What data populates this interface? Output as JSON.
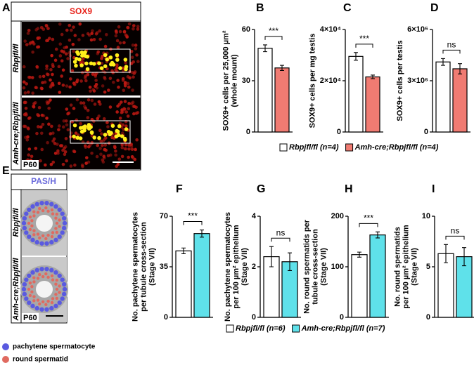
{
  "image_panels": [
    {
      "letter": "A",
      "header": "SOX9",
      "row_labels": [
        "Rbpjfl/fl",
        "Amh-cre;Rbpjfl/fl"
      ],
      "age": "P60"
    },
    {
      "letter": "E",
      "header": "PAS/H",
      "row_labels": [
        "Rbpjfl/fl",
        "Amh-cre;Rbpjfl/fl"
      ],
      "age": "P60",
      "key": [
        "pachytene spermatocyte",
        "round spermatid"
      ]
    }
  ],
  "legends": [
    [
      {
        "name": "Rbpjfl/fl (n=4)",
        "color": "#ffffff"
      },
      {
        "name": "Amh-cre;Rbpjfl/fl (n=4)",
        "color": "#f07b72"
      }
    ],
    [
      {
        "name": "Rbpjfl/fl (n=6)",
        "color": "#ffffff"
      },
      {
        "name": "Amh-cre;Rbpjfl/fl (n=7)",
        "color": "#5fe1ea"
      }
    ]
  ],
  "chart_data": [
    {
      "type": "bar",
      "letter": "B",
      "ylabel": [
        "SOX9+ cells per 25,000 µm²",
        "(whole mount)"
      ],
      "categories": [
        null,
        null
      ],
      "values": [
        49,
        37.5
      ],
      "errors": [
        2,
        1.5
      ],
      "colors": [
        "#ffffff",
        "#f07b72"
      ],
      "ylim": [
        0,
        60
      ],
      "yticks": [
        0,
        30,
        60
      ],
      "annotation": "***"
    },
    {
      "type": "bar",
      "letter": "C",
      "ylabel": [
        "SOX9+ cells per mg testis"
      ],
      "categories": [
        null,
        null
      ],
      "values": [
        29500,
        21500
      ],
      "errors": [
        1500,
        700
      ],
      "colors": [
        "#ffffff",
        "#f07b72"
      ],
      "ylim": [
        0,
        40000
      ],
      "yticks": [
        0,
        {
          "value": 20000,
          "label": "2×10⁴"
        },
        {
          "value": 40000,
          "label": "4×10⁴"
        }
      ],
      "annotation": "***"
    },
    {
      "type": "bar",
      "letter": "D",
      "ylabel": [
        "SOX9+ cells per testis"
      ],
      "categories": [
        null,
        null
      ],
      "values": [
        4100000,
        3700000
      ],
      "errors": [
        200000,
        300000
      ],
      "colors": [
        "#ffffff",
        "#f07b72"
      ],
      "ylim": [
        0,
        6000000
      ],
      "yticks": [
        0,
        {
          "value": 3000000,
          "label": "3×10⁶"
        },
        {
          "value": 6000000,
          "label": "6×10⁶"
        }
      ],
      "annotation": "ns"
    },
    {
      "type": "bar",
      "letter": "F",
      "ylabel": [
        "No. pachytene spermatocytes",
        "per tubule cross-section",
        "(Stage VII)"
      ],
      "categories": [
        null,
        null
      ],
      "values": [
        46,
        58
      ],
      "errors": [
        2,
        2.5
      ],
      "colors": [
        "#ffffff",
        "#5fe1ea"
      ],
      "ylim": [
        0,
        70
      ],
      "yticks": [
        0,
        35,
        70
      ],
      "annotation": "***"
    },
    {
      "type": "bar",
      "letter": "G",
      "ylabel": [
        "No. pachytene spermatocytes",
        "per 100 µm² epithelium",
        "(Stage VII)"
      ],
      "categories": [
        null,
        null
      ],
      "values": [
        2.4,
        2.2
      ],
      "errors": [
        0.4,
        0.35
      ],
      "colors": [
        "#ffffff",
        "#5fe1ea"
      ],
      "ylim": [
        0,
        4
      ],
      "yticks": [
        0,
        2,
        4
      ],
      "annotation": "ns"
    },
    {
      "type": "bar",
      "letter": "H",
      "ylabel": [
        "No. round spermatids per",
        "tubule cross-section",
        "(Stage VII)"
      ],
      "categories": [
        null,
        null
      ],
      "values": [
        124,
        163
      ],
      "errors": [
        5,
        6
      ],
      "colors": [
        "#ffffff",
        "#5fe1ea"
      ],
      "ylim": [
        0,
        200
      ],
      "yticks": [
        0,
        100,
        200
      ],
      "annotation": "***"
    },
    {
      "type": "bar",
      "letter": "I",
      "ylabel": [
        "No. round spermatids",
        "per 100 µm² epithelium",
        "(Stage VII)"
      ],
      "categories": [
        null,
        null
      ],
      "values": [
        6.3,
        6.0
      ],
      "errors": [
        0.9,
        0.9
      ],
      "colors": [
        "#ffffff",
        "#5fe1ea"
      ],
      "ylim": [
        0,
        10
      ],
      "yticks": [
        0,
        5,
        10
      ],
      "annotation": "ns"
    }
  ]
}
